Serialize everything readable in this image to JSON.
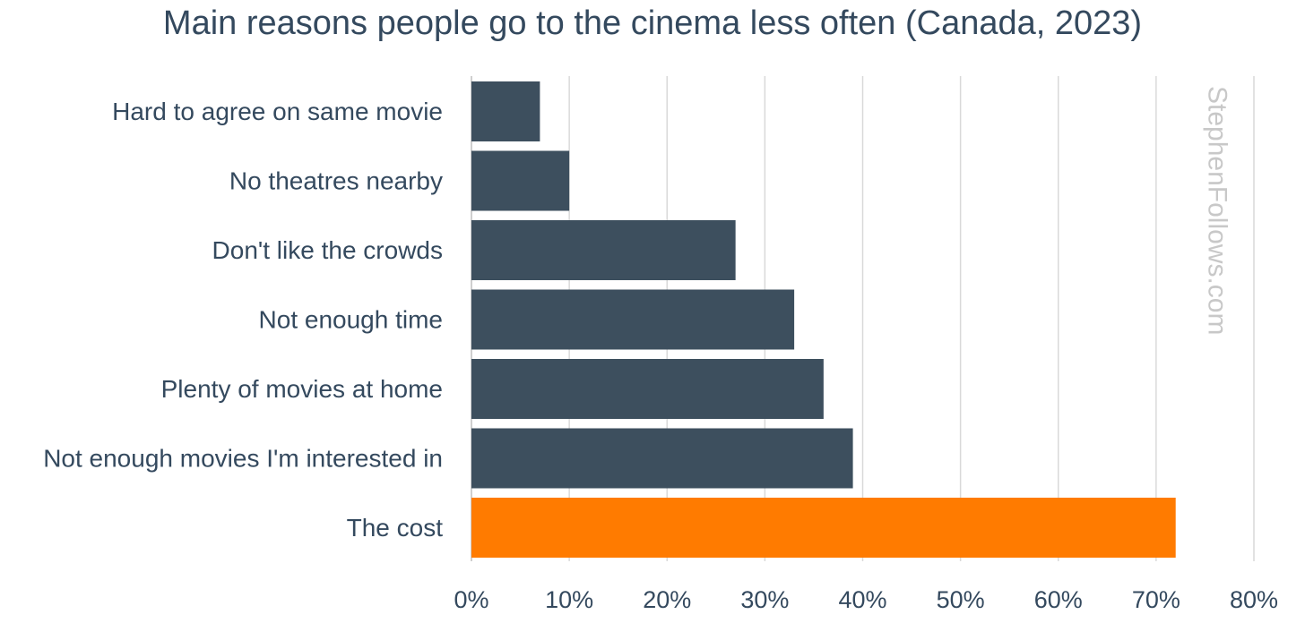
{
  "chart_data": {
    "type": "bar",
    "orientation": "horizontal",
    "title": "Main reasons people go to the cinema less often (Canada, 2023)",
    "categories": [
      "Hard to agree on same movie",
      "No theatres nearby",
      "Don't like the crowds",
      "Not enough time",
      "Plenty of movies at home",
      "Not enough movies I'm interested in",
      "The cost"
    ],
    "values": [
      7,
      10,
      27,
      33,
      36,
      39,
      72
    ],
    "value_unit": "%",
    "xlim": [
      0,
      80
    ],
    "x_ticks": [
      "0%",
      "10%",
      "20%",
      "30%",
      "40%",
      "50%",
      "60%",
      "70%",
      "80%"
    ],
    "xlabel": "",
    "ylabel": "",
    "grid": true,
    "bar_colors": [
      "#3d4f5e",
      "#3d4f5e",
      "#3d4f5e",
      "#3d4f5e",
      "#3d4f5e",
      "#3d4f5e",
      "#ff7b00"
    ],
    "watermark": "StephenFollows.com"
  }
}
